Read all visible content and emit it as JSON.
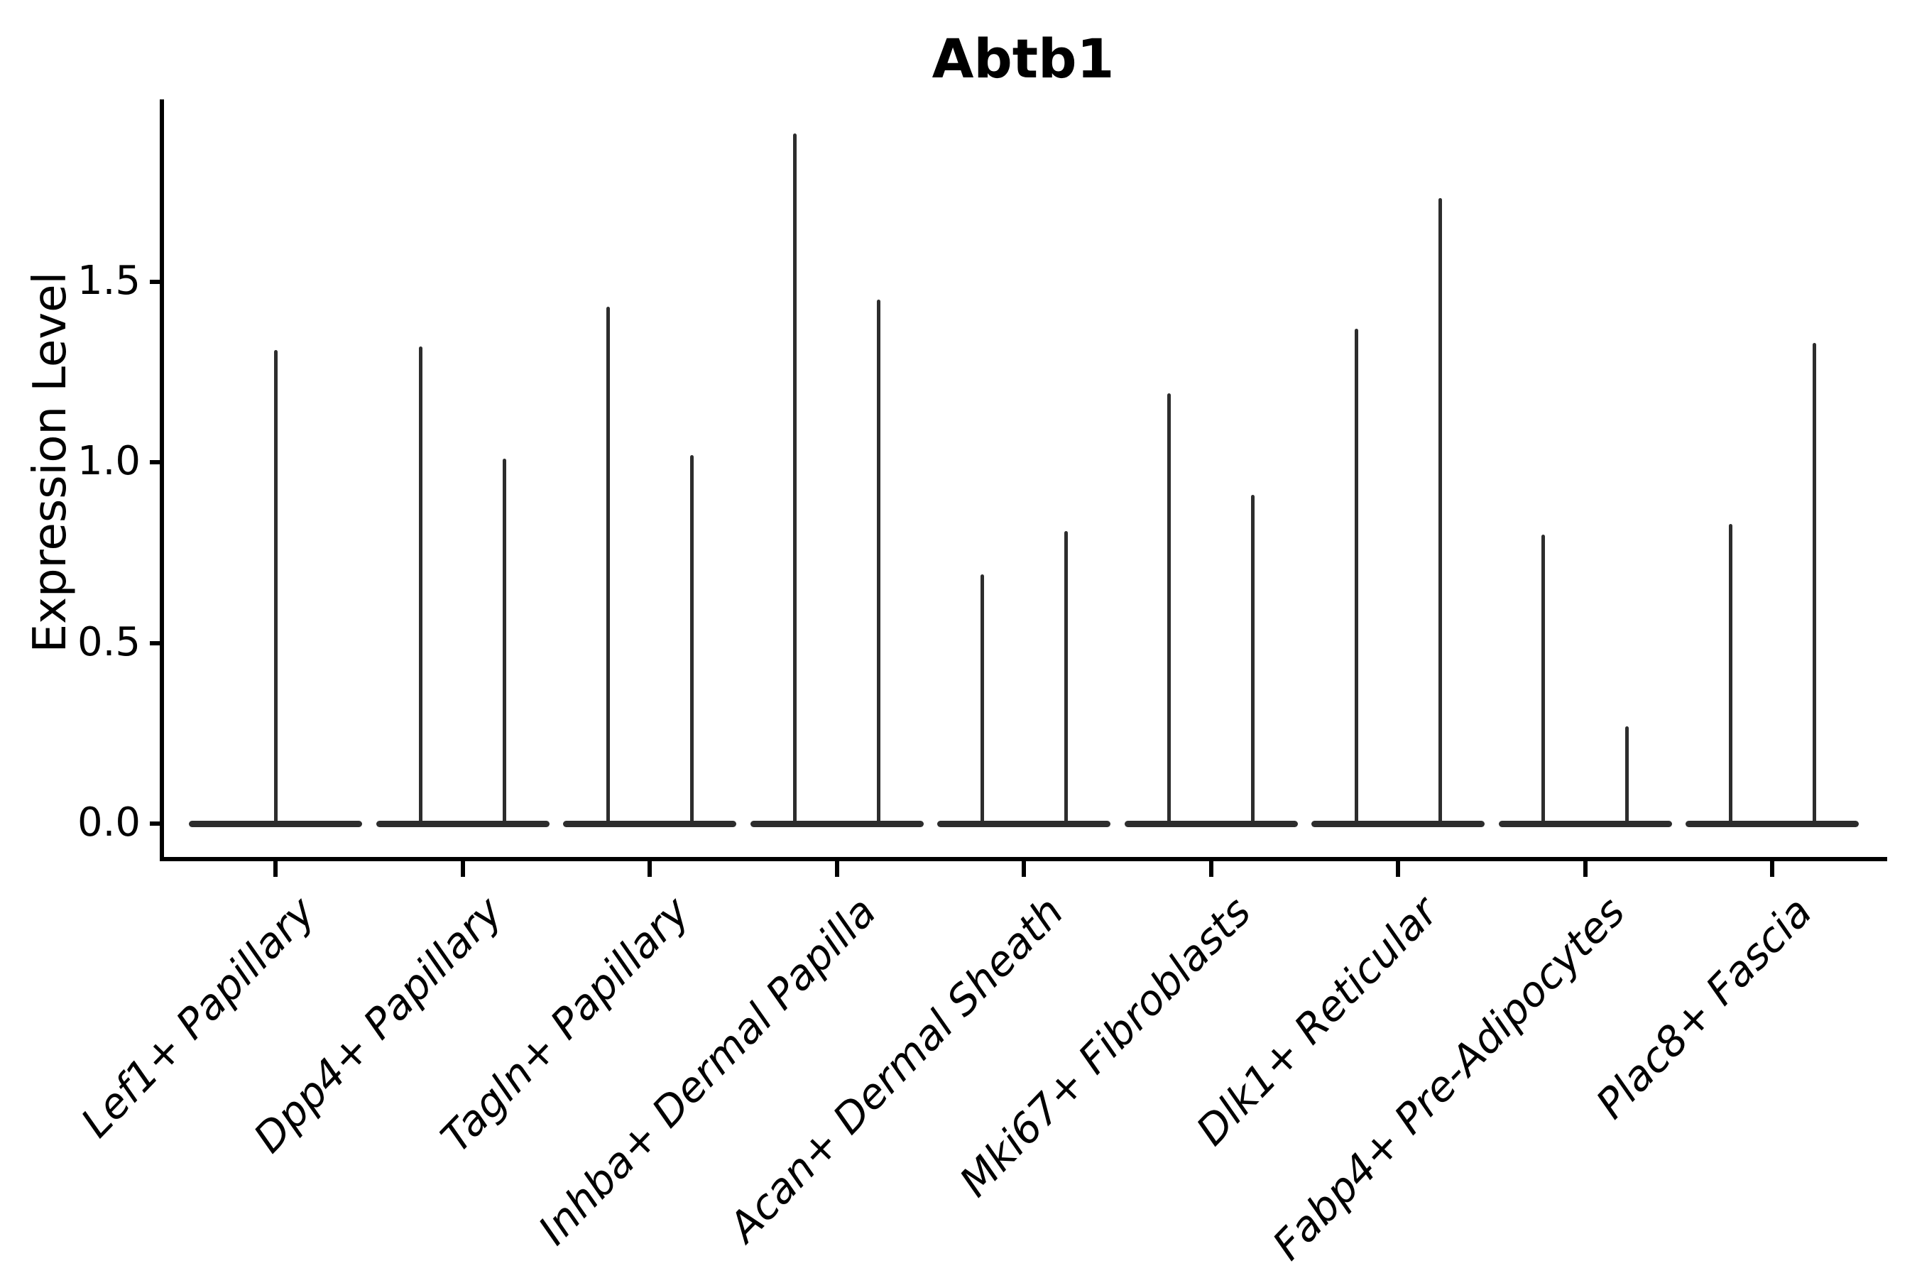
{
  "figure": {
    "background_color": "#ffffff",
    "ink_color": "#000000",
    "violin_color": "#2d2d2d"
  },
  "chart_data": {
    "type": "violin",
    "title": "Abtb1",
    "ylabel": "Expression Level",
    "xlabel": "",
    "ylim": [
      0.0,
      2.0
    ],
    "grid": false,
    "legend_position": "none",
    "yticks": [
      {
        "value": 0.0,
        "label": "0.0"
      },
      {
        "value": 0.5,
        "label": "0.5"
      },
      {
        "value": 1.0,
        "label": "1.0"
      },
      {
        "value": 1.5,
        "label": "1.5"
      }
    ],
    "categories": [
      "Lef1+ Papillary",
      "Dpp4+ Papillary",
      "Tagln+ Papillary",
      "Inhba+ Dermal Papilla",
      "Acan+ Dermal Sheath",
      "Mki67+ Fibroblasts",
      "Dlk1+ Reticular",
      "Fabp4+ Pre-Adipocytes",
      "Plac8+ Fascia"
    ],
    "violins": [
      {
        "category": "Lef1+ Papillary",
        "baseline_value": 0.0,
        "spikes": [
          {
            "position": "center",
            "peak": 1.31
          }
        ]
      },
      {
        "category": "Dpp4+ Papillary",
        "baseline_value": 0.0,
        "spikes": [
          {
            "position": "left",
            "peak": 1.32
          },
          {
            "position": "right",
            "peak": 1.01
          }
        ]
      },
      {
        "category": "Tagln+ Papillary",
        "baseline_value": 0.0,
        "spikes": [
          {
            "position": "left",
            "peak": 1.43
          },
          {
            "position": "right",
            "peak": 1.02
          }
        ]
      },
      {
        "category": "Inhba+ Dermal Papilla",
        "baseline_value": 0.0,
        "spikes": [
          {
            "position": "left",
            "peak": 1.91
          },
          {
            "position": "right",
            "peak": 1.45
          }
        ]
      },
      {
        "category": "Acan+ Dermal Sheath",
        "baseline_value": 0.0,
        "spikes": [
          {
            "position": "left",
            "peak": 0.69
          },
          {
            "position": "right",
            "peak": 0.81
          }
        ]
      },
      {
        "category": "Mki67+ Fibroblasts",
        "baseline_value": 0.0,
        "spikes": [
          {
            "position": "left",
            "peak": 1.19
          },
          {
            "position": "right",
            "peak": 0.91
          }
        ]
      },
      {
        "category": "Dlk1+ Reticular",
        "baseline_value": 0.0,
        "spikes": [
          {
            "position": "left",
            "peak": 1.37
          },
          {
            "position": "right",
            "peak": 1.73
          }
        ]
      },
      {
        "category": "Fabp4+ Pre-Adipocytes",
        "baseline_value": 0.0,
        "spikes": [
          {
            "position": "left",
            "peak": 0.8
          },
          {
            "position": "right",
            "peak": 0.27
          }
        ]
      },
      {
        "category": "Plac8+ Fascia",
        "baseline_value": 0.0,
        "spikes": [
          {
            "position": "left",
            "peak": 0.83
          },
          {
            "position": "right",
            "peak": 1.33
          }
        ]
      }
    ]
  }
}
